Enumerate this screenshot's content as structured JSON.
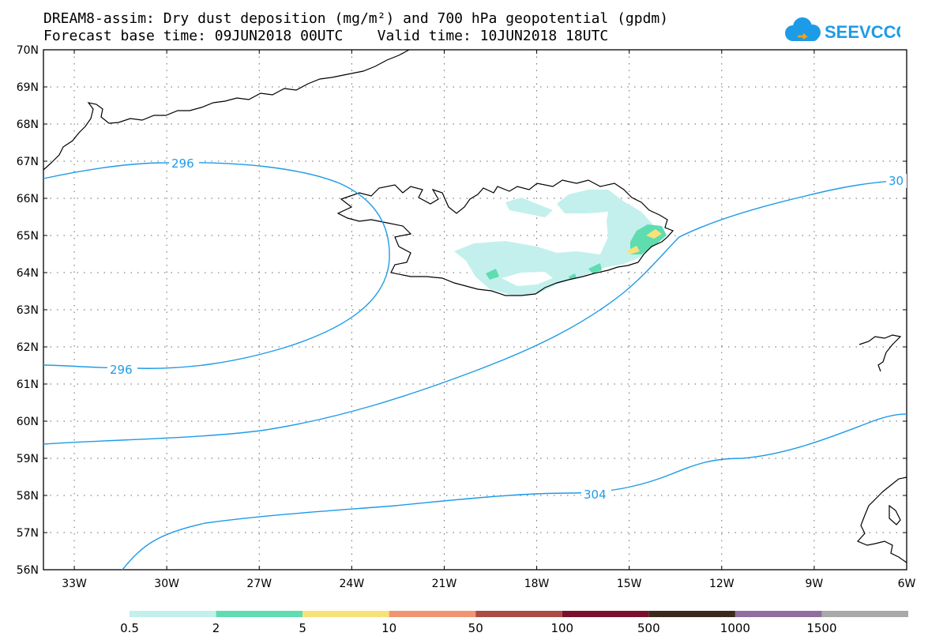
{
  "header": {
    "title_line1": "DREAM8-assim: Dry dust deposition (mg/m²) and 700 hPa geopotential (gpdm)",
    "title_line2": "Forecast base time: 09JUN2018 00UTC    Valid time: 10JUN2018 18UTC"
  },
  "logo": {
    "text": "SEEVCCC",
    "color": "#1e9be6",
    "icon": "cloud-icon"
  },
  "map": {
    "lat_labels": [
      "70N",
      "69N",
      "68N",
      "67N",
      "66N",
      "65N",
      "64N",
      "63N",
      "62N",
      "61N",
      "60N",
      "59N",
      "58N",
      "57N",
      "56N"
    ],
    "lon_labels": [
      "33W",
      "30W",
      "27W",
      "24W",
      "21W",
      "18W",
      "15W",
      "12W",
      "9W",
      "6W"
    ],
    "lon_range": [
      -34,
      -6
    ],
    "lat_range": [
      56,
      70
    ],
    "grid": "dotted",
    "contour_color": "#1e9be6",
    "contour_labels": [
      "296",
      "296",
      "304",
      "30"
    ]
  },
  "legend": {
    "labels": [
      "0.5",
      "2",
      "5",
      "10",
      "50",
      "100",
      "500",
      "1000",
      "1500"
    ],
    "colors": [
      "#c3f0ec",
      "#5fdcb0",
      "#f7e27a",
      "#ef9571",
      "#a94d45",
      "#7b0f2b",
      "#3b2a1c",
      "#8f6f9f",
      "#a9a9a9"
    ]
  }
}
